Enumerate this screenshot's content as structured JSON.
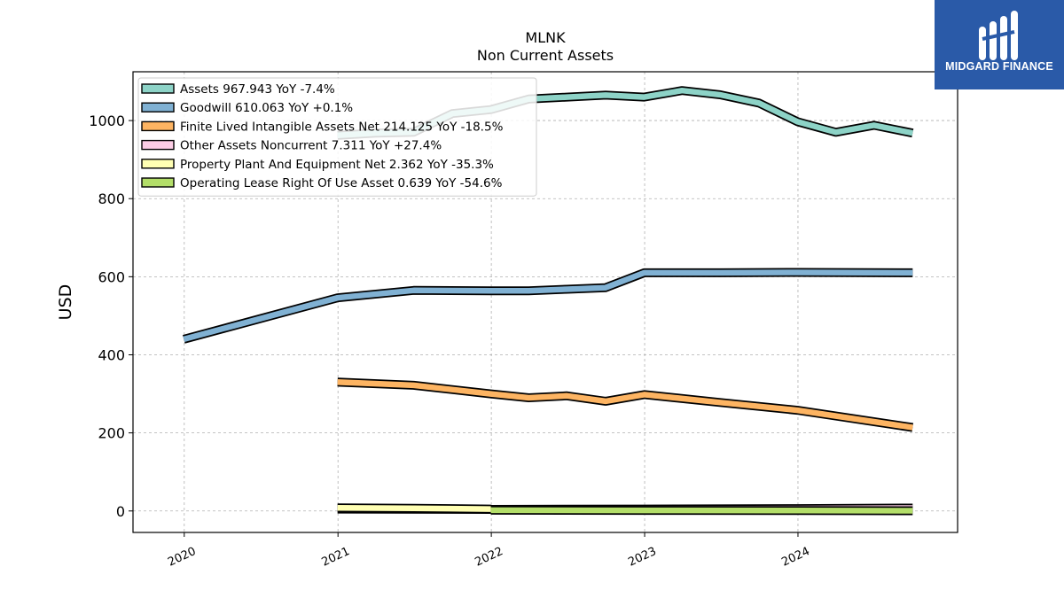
{
  "header": {
    "ticker": "MLNK",
    "subtitle": "Non Current  Assets"
  },
  "brand": {
    "name": "MIDGARD FINANCE",
    "color": "#2a5aa8"
  },
  "chart_data": {
    "type": "line",
    "title": "MLNK",
    "subtitle": "Non Current  Assets",
    "xlabel": "",
    "ylabel": "USD",
    "xlim": [
      "2019-09-01",
      "2025-01-15"
    ],
    "ylim": [
      -55,
      1125
    ],
    "xticks": [
      "2020",
      "2021",
      "2022",
      "2023",
      "2024"
    ],
    "yticks": [
      0,
      200,
      400,
      600,
      800,
      1000
    ],
    "grid": true,
    "legend_position": "top-left",
    "series": [
      {
        "name": "Assets",
        "legend": "Assets  967.943 YoY -7.4%",
        "color": "#8dd3c7",
        "x": [
          "2020-12-31",
          "2021-03-31",
          "2021-06-30",
          "2021-09-30",
          "2021-12-31",
          "2022-03-31",
          "2022-06-30",
          "2022-09-30",
          "2022-12-31",
          "2023-03-31",
          "2023-06-30",
          "2023-09-30",
          "2023-12-31",
          "2024-03-31",
          "2024-06-30",
          "2024-09-30"
        ],
        "values": [
          962,
          968,
          970,
          1018,
          1028,
          1055,
          1060,
          1065,
          1060,
          1077,
          1066,
          1045,
          997,
          970,
          988,
          968
        ]
      },
      {
        "name": "Goodwill",
        "legend": "Goodwill  610.063 YoY +0.1%",
        "color": "#80b1d3",
        "x": [
          "2019-12-31",
          "2020-12-31",
          "2021-06-30",
          "2021-12-31",
          "2022-03-31",
          "2022-06-30",
          "2022-09-30",
          "2022-12-31",
          "2023-06-30",
          "2023-12-31",
          "2024-09-30"
        ],
        "values": [
          440,
          546,
          565,
          564,
          564,
          568,
          572,
          610,
          610,
          611,
          610
        ]
      },
      {
        "name": "Finite Lived Intangible Assets Net",
        "legend": "Finite Lived Intangible Assets Net  214.125 YoY -18.5%",
        "color": "#fdb462",
        "x": [
          "2020-12-31",
          "2021-06-30",
          "2021-12-31",
          "2022-03-31",
          "2022-06-30",
          "2022-09-30",
          "2022-12-31",
          "2023-06-30",
          "2023-12-31",
          "2024-09-30"
        ],
        "values": [
          330,
          322,
          300,
          290,
          295,
          281,
          298,
          278,
          258,
          214
        ]
      },
      {
        "name": "Other Assets Noncurrent",
        "legend": "Other Assets Noncurrent  7.311 YoY +27.4%",
        "color": "#fccde5",
        "x": [
          "2020-12-31",
          "2021-12-31",
          "2022-12-31",
          "2023-12-31",
          "2024-09-30"
        ],
        "values": [
          5,
          4,
          5,
          6,
          7.3
        ]
      },
      {
        "name": "Property Plant And Equipment Net",
        "legend": "Property Plant And Equipment Net  2.362 YoY -35.3%",
        "color": "#ffffb3",
        "x": [
          "2020-12-31",
          "2021-06-30",
          "2021-12-31"
        ],
        "values": [
          8,
          7,
          5
        ]
      },
      {
        "name": "Operating Lease Right Of Use Asset",
        "legend": "Operating Lease Right Of Use Asset  0.639 YoY -54.6%",
        "color": "#b3de69",
        "x": [
          "2021-12-31",
          "2022-12-31",
          "2023-12-31",
          "2024-09-30"
        ],
        "values": [
          2,
          1.5,
          1,
          0.6
        ]
      }
    ]
  }
}
